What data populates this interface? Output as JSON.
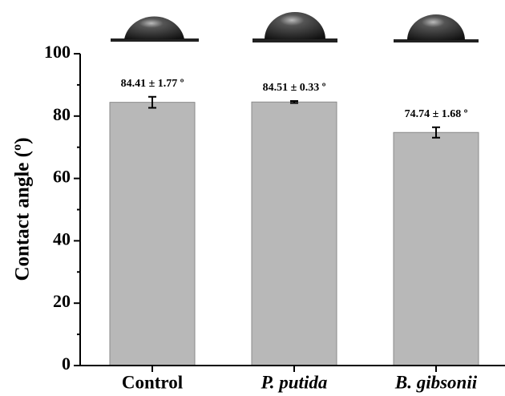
{
  "chart_data": {
    "type": "bar",
    "y_label": "Contact angle (º)",
    "categories": [
      "Control",
      "P. putida",
      "B. gibsonii"
    ],
    "italic_categories": [
      false,
      true,
      true
    ],
    "values": [
      84.41,
      84.51,
      74.74
    ],
    "errors": [
      1.77,
      0.33,
      1.68
    ],
    "value_labels": [
      "84.41 ± 1.77 º",
      "84.51 ± 0.33 º",
      "74.74 ± 1.68 º"
    ],
    "color": "#b8b8b8",
    "ylim": [
      0,
      100
    ],
    "yticks": [
      0,
      20,
      40,
      60,
      80,
      100
    ]
  }
}
